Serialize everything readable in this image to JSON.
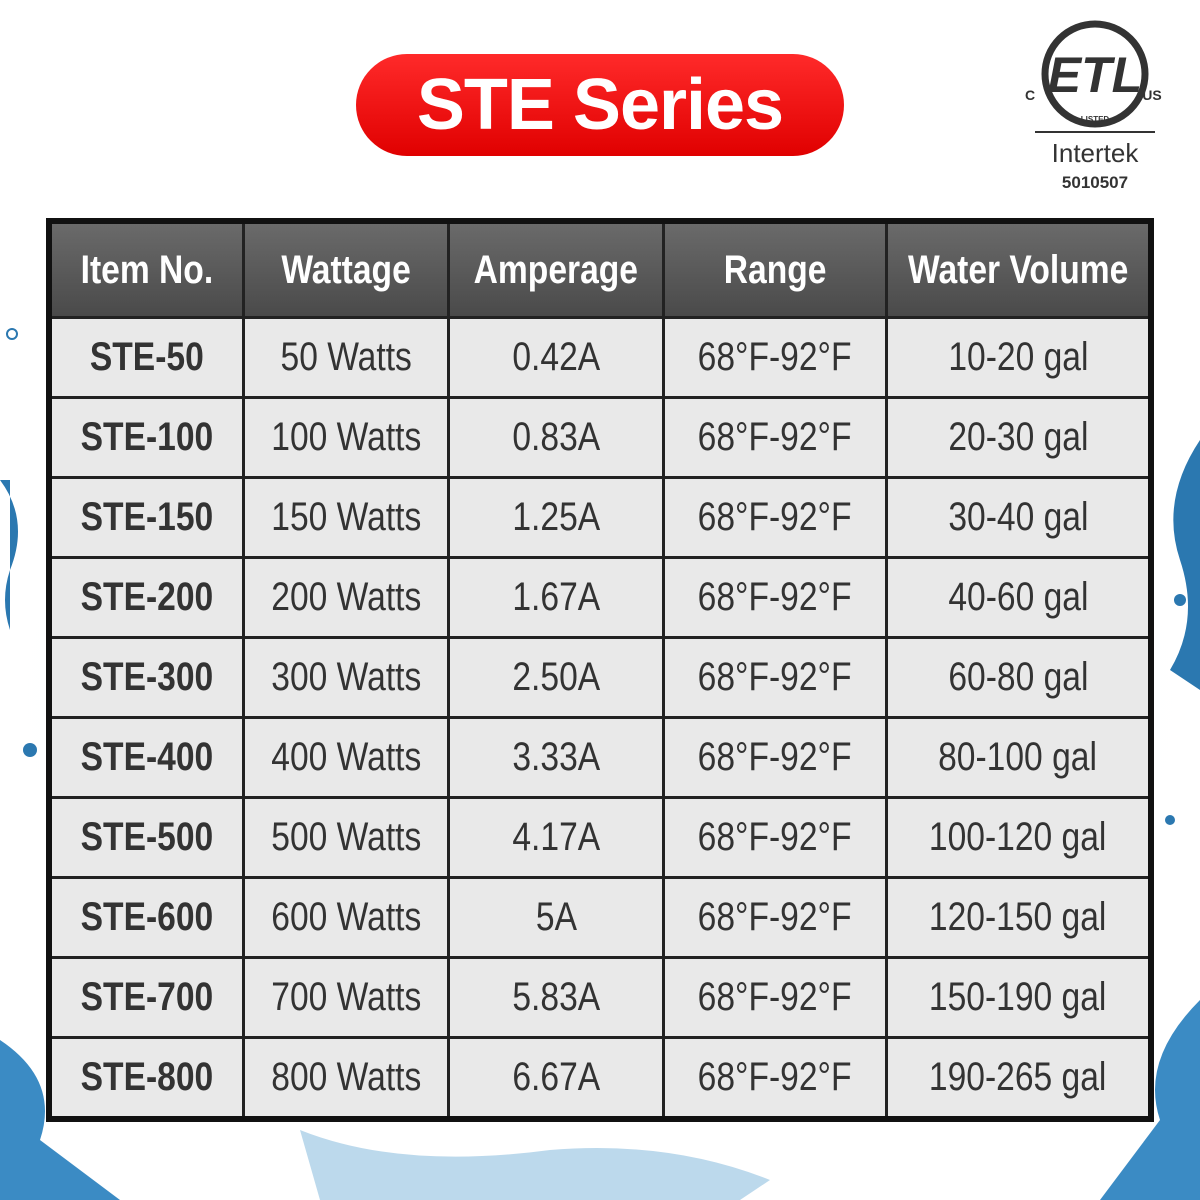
{
  "header": {
    "title": "STE Series"
  },
  "certification": {
    "mark": "ETL",
    "left": "C",
    "right": "US",
    "listed": "LISTED",
    "brand": "Intertek",
    "number": "5010507"
  },
  "table": {
    "columns": [
      "Item No.",
      "Wattage",
      "Amperage",
      "Range",
      "Water Volume"
    ],
    "rows": [
      [
        "STE-50",
        "50 Watts",
        "0.42A",
        "68°F-92°F",
        "10-20 gal"
      ],
      [
        "STE-100",
        "100 Watts",
        "0.83A",
        "68°F-92°F",
        "20-30 gal"
      ],
      [
        "STE-150",
        "150 Watts",
        "1.25A",
        "68°F-92°F",
        "30-40 gal"
      ],
      [
        "STE-200",
        "200 Watts",
        "1.67A",
        "68°F-92°F",
        "40-60 gal"
      ],
      [
        "STE-300",
        "300 Watts",
        "2.50A",
        "68°F-92°F",
        "60-80 gal"
      ],
      [
        "STE-400",
        "400 Watts",
        "3.33A",
        "68°F-92°F",
        "80-100 gal"
      ],
      [
        "STE-500",
        "500 Watts",
        "4.17A",
        "68°F-92°F",
        "100-120 gal"
      ],
      [
        "STE-600",
        "600 Watts",
        "5A",
        "68°F-92°F",
        "120-150 gal"
      ],
      [
        "STE-700",
        "700 Watts",
        "5.83A",
        "68°F-92°F",
        "150-190 gal"
      ],
      [
        "STE-800",
        "800 Watts",
        "6.67A",
        "68°F-92°F",
        "190-265 gal"
      ]
    ]
  }
}
